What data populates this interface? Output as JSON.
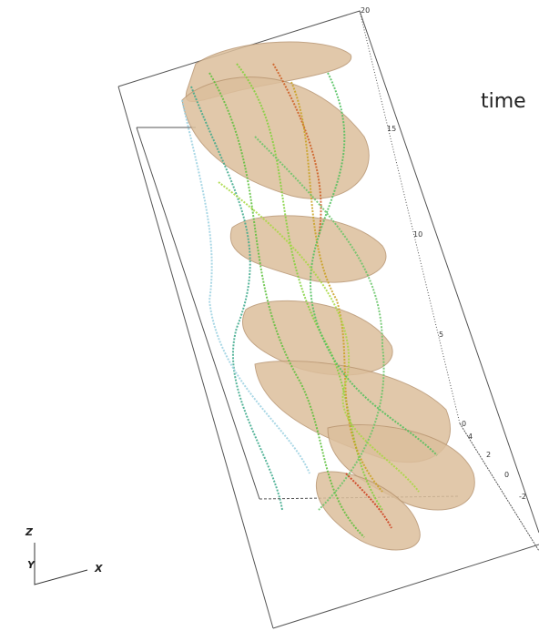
{
  "annotation": "time",
  "z_axis_ticks": [
    "20",
    "15",
    "10",
    "5",
    "0"
  ],
  "y_axis_ticks": [
    "4",
    "2",
    "0",
    "-2"
  ],
  "axes_triad": {
    "z": "Z",
    "y": "Y",
    "x": "X"
  }
}
